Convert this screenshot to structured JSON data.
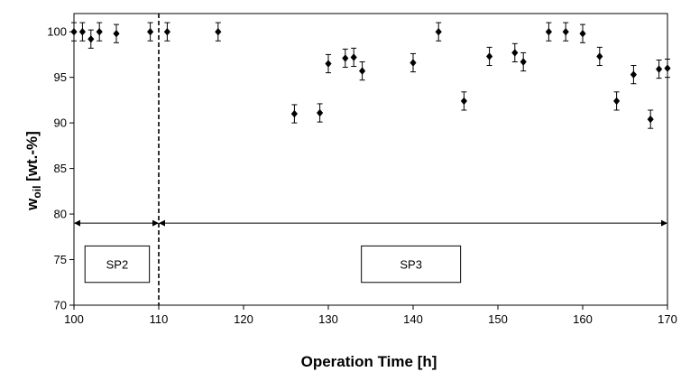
{
  "chart_data": {
    "type": "scatter",
    "xlabel": "Operation Time [h]",
    "ylabel_main": "w",
    "ylabel_sub": "oil",
    "ylabel_unit": " [wt.-%]",
    "xlim": [
      100,
      170
    ],
    "ylim": [
      70,
      102
    ],
    "x_ticks": [
      100,
      110,
      120,
      130,
      140,
      150,
      160,
      170
    ],
    "y_ticks": [
      70,
      75,
      80,
      85,
      90,
      95,
      100
    ],
    "error_bar": 1.0,
    "points": [
      {
        "x": 100,
        "y": 100
      },
      {
        "x": 101,
        "y": 100
      },
      {
        "x": 102,
        "y": 99.2
      },
      {
        "x": 103,
        "y": 100
      },
      {
        "x": 105,
        "y": 99.8
      },
      {
        "x": 109,
        "y": 100
      },
      {
        "x": 111,
        "y": 100
      },
      {
        "x": 117,
        "y": 100
      },
      {
        "x": 126,
        "y": 91
      },
      {
        "x": 129,
        "y": 91.1
      },
      {
        "x": 130,
        "y": 96.5
      },
      {
        "x": 132,
        "y": 97.1
      },
      {
        "x": 133,
        "y": 97.2
      },
      {
        "x": 134,
        "y": 95.7
      },
      {
        "x": 140,
        "y": 96.6
      },
      {
        "x": 143,
        "y": 100
      },
      {
        "x": 146,
        "y": 92.4
      },
      {
        "x": 149,
        "y": 97.3
      },
      {
        "x": 152,
        "y": 97.7
      },
      {
        "x": 153,
        "y": 96.7
      },
      {
        "x": 156,
        "y": 100
      },
      {
        "x": 158,
        "y": 100
      },
      {
        "x": 160,
        "y": 99.8
      },
      {
        "x": 162,
        "y": 97.3
      },
      {
        "x": 164,
        "y": 92.4
      },
      {
        "x": 166,
        "y": 95.3
      },
      {
        "x": 168,
        "y": 90.4
      },
      {
        "x": 169,
        "y": 95.9
      },
      {
        "x": 170,
        "y": 96
      }
    ],
    "divider_x": 110,
    "range_arrow_y": 79,
    "regions": [
      {
        "label": "SP2",
        "x_start": 100,
        "x_end": 110,
        "box_x": [
          101.3,
          108.9
        ],
        "box_y": [
          72.5,
          76.5
        ]
      },
      {
        "label": "SP3",
        "x_start": 110,
        "x_end": 170,
        "box_x": [
          133.9,
          145.6
        ],
        "box_y": [
          72.5,
          76.5
        ]
      }
    ],
    "grid": false,
    "legend": "none"
  }
}
